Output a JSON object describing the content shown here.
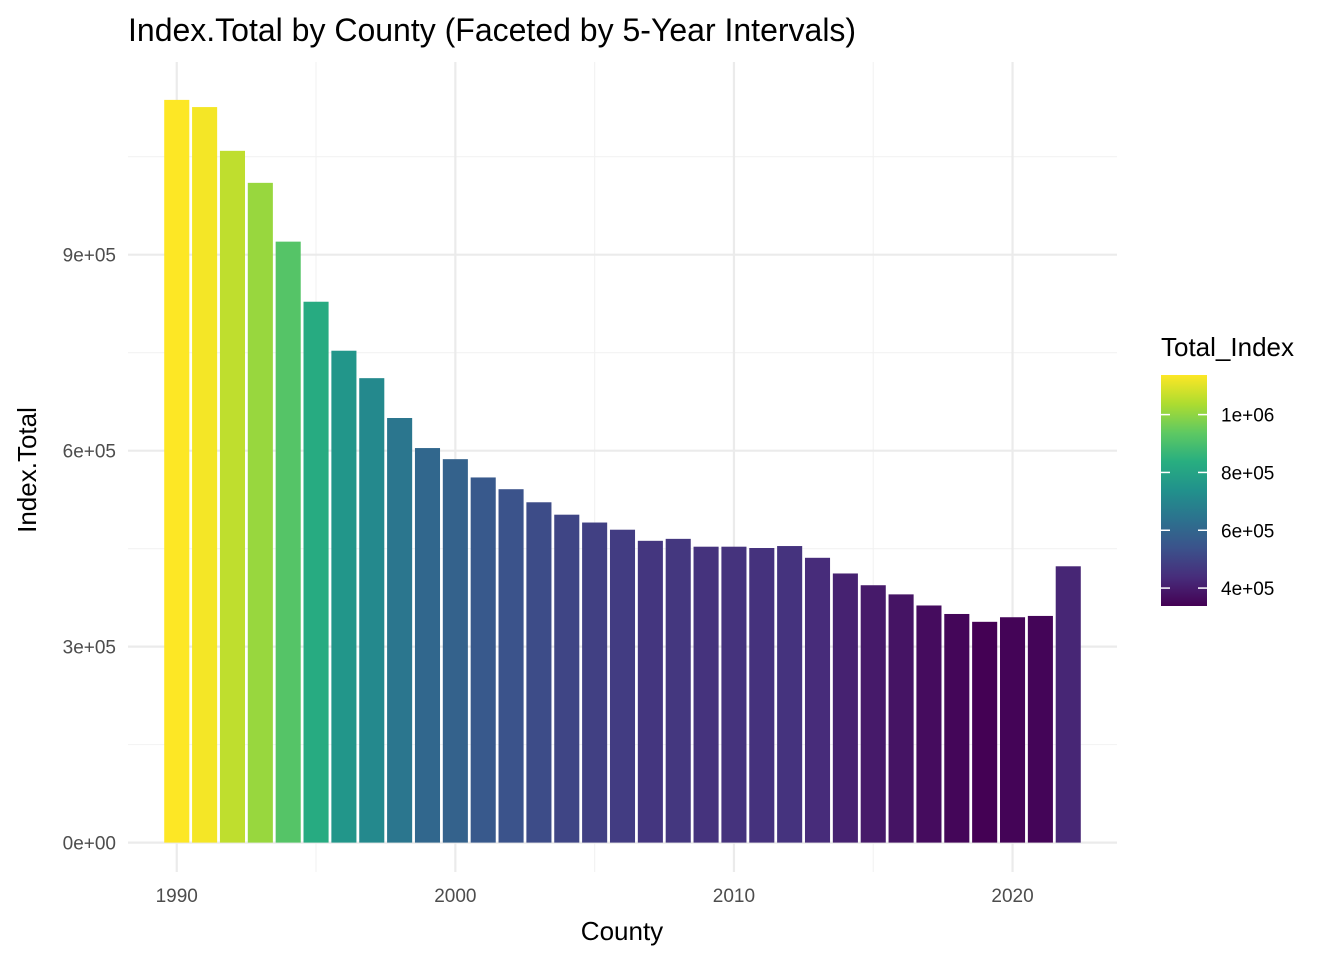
{
  "chart_data": {
    "type": "bar",
    "title": "Index.Total by County (Faceted by 5-Year Intervals)",
    "xlabel": "County",
    "ylabel": "Index.Total",
    "x": [
      1990,
      1991,
      1992,
      1993,
      1994,
      1995,
      1996,
      1997,
      1998,
      1999,
      2000,
      2001,
      2002,
      2003,
      2004,
      2005,
      2006,
      2007,
      2008,
      2009,
      2010,
      2011,
      2012,
      2013,
      2014,
      2015,
      2016,
      2017,
      2018,
      2019,
      2020,
      2021,
      2022
    ],
    "values": [
      1137000,
      1126000,
      1059000,
      1010000,
      920000,
      828000,
      753000,
      711000,
      650000,
      604000,
      587000,
      559000,
      541000,
      521000,
      502000,
      490000,
      479000,
      462000,
      465000,
      453000,
      453000,
      451000,
      454000,
      436000,
      412000,
      394000,
      380000,
      363000,
      350000,
      338000,
      345000,
      347000,
      423000
    ],
    "xlim": [
      1988.25,
      2023.75
    ],
    "ylim": [
      -45000,
      1195000
    ],
    "x_ticks": [
      1990,
      2000,
      2010,
      2020
    ],
    "x_tick_labels": [
      "1990",
      "2000",
      "2010",
      "2020"
    ],
    "y_ticks": [
      0,
      300000,
      600000,
      900000
    ],
    "y_tick_labels": [
      "0e+00",
      "3e+05",
      "6e+05",
      "9e+05"
    ],
    "grid": true,
    "color_scale": "viridis",
    "legend": {
      "title": "Total_Index",
      "position": "right",
      "min": 338000,
      "max": 1137000,
      "ticks": [
        400000,
        600000,
        800000,
        1000000
      ],
      "tick_labels": [
        "4e+05",
        "6e+05",
        "8e+05",
        "1e+06"
      ]
    }
  }
}
